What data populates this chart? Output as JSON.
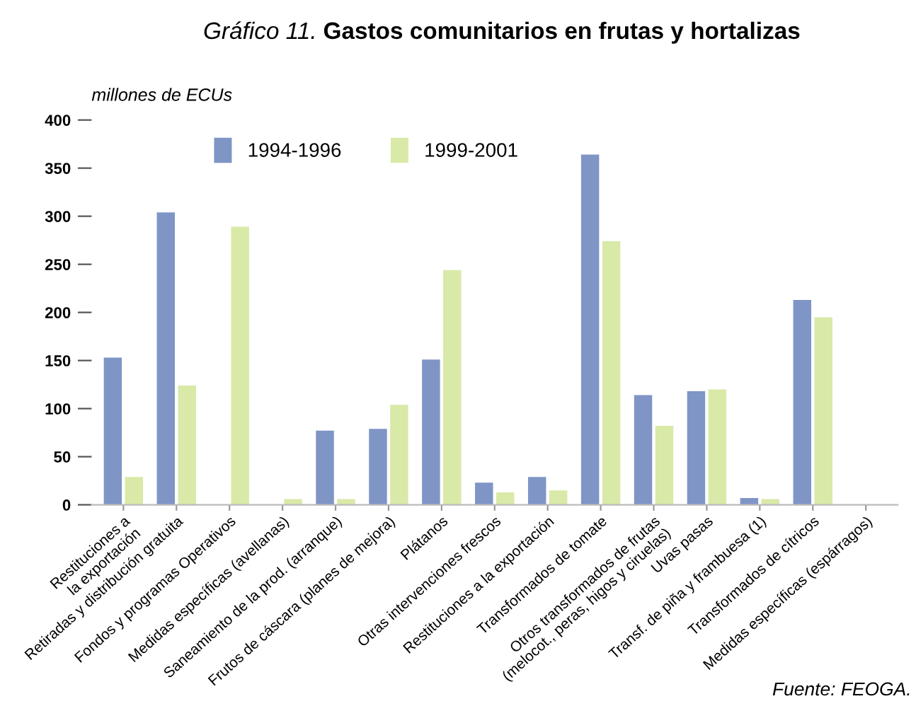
{
  "chart_data": {
    "type": "bar",
    "title": "Gráfico 11. Gastos comunitarios en frutas y hortalizas",
    "ylabel": "millones de ECUs",
    "categories": [
      "Restituciones a\nla exportación",
      "Retiradas y distribución gratuita",
      "Fondos y programas Operativos",
      "Medidas específicas (avellanas)",
      "Saneamiento de la prod. (arranque)",
      "Frutos de cáscara (planes de mejora)",
      "Plátanos",
      "Otras intervenciones frescos",
      "Restituciones a la exportación",
      "Transformados de tomate",
      "Otros transformados de frutas\n(melocot., peras, higos y ciruelas)",
      "Uvas pasas",
      "Transf. de piña y frambuesa (1)",
      "Transformados de cítricos",
      "Medidas específicas (espárragos)"
    ],
    "series": [
      {
        "name": "1994-1996",
        "color": "#7f95c6",
        "values": [
          153,
          304,
          0,
          0,
          77,
          79,
          151,
          23,
          29,
          364,
          114,
          118,
          7,
          213,
          0
        ]
      },
      {
        "name": "1999-2001",
        "color": "#d9e9a8",
        "values": [
          29,
          124,
          289,
          6,
          6,
          104,
          244,
          13,
          15,
          274,
          82,
          120,
          6,
          195,
          0
        ]
      }
    ],
    "ylim": [
      0,
      400
    ],
    "yticks": [
      0,
      50,
      100,
      150,
      200,
      250,
      300,
      350,
      400
    ],
    "grid": false,
    "legend": "top left",
    "annotations": [
      "Fuente: FEOGA."
    ]
  }
}
